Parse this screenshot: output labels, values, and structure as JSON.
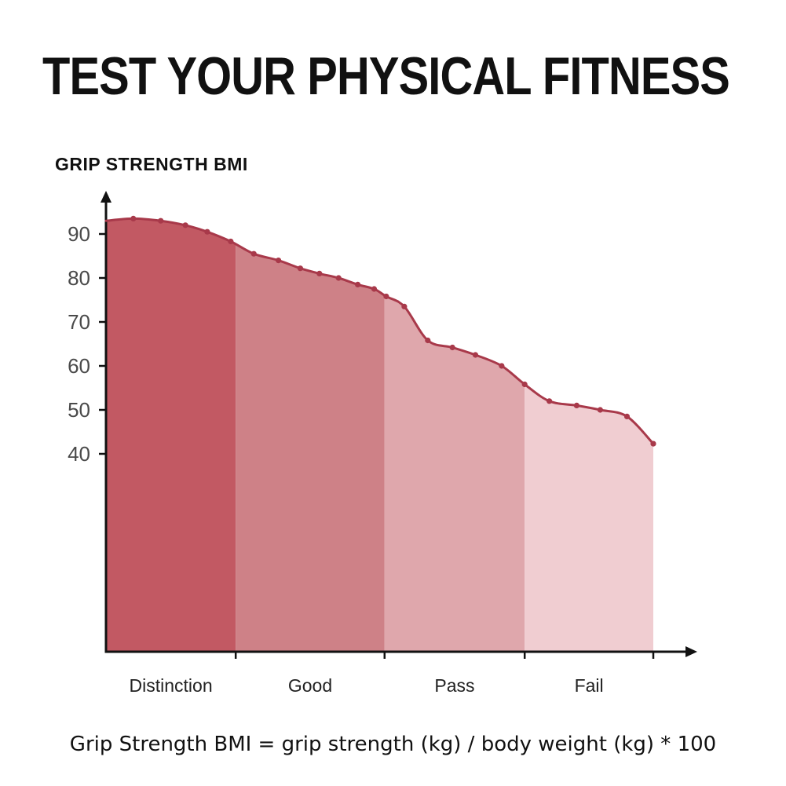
{
  "page": {
    "title": "TEST YOUR PHYSICAL FITNESS",
    "chart_heading": "GRIP STRENGTH BMI",
    "caption": "Grip Strength BMI = grip strength (kg) / body weight (kg) * 100"
  },
  "chart_data": {
    "type": "area",
    "title": "GRIP STRENGTH BMI",
    "xlabel": "",
    "ylabel": "",
    "grid": false,
    "legend": false,
    "y_ticks": [
      90,
      80,
      70,
      60,
      50,
      40
    ],
    "y_range_shown": [
      40,
      95
    ],
    "categories": [
      "Distinction",
      "Good",
      "Pass",
      "Fail"
    ],
    "band_boundaries_frac": [
      0,
      0.237,
      0.509,
      0.765,
      1.0
    ],
    "band_colors": [
      "#c25963",
      "#ce8187",
      "#dfa7ac",
      "#f0cdd1"
    ],
    "line_color": "#a8394a",
    "dot_color": "#a8394a",
    "axis_color": "#111111",
    "tick_label_color": "#4a4a4a",
    "category_label_color": "#222222",
    "points": [
      [
        0.0,
        93.0
      ],
      [
        0.05,
        93.5
      ],
      [
        0.1,
        93.0
      ],
      [
        0.145,
        92.0
      ],
      [
        0.185,
        90.5
      ],
      [
        0.228,
        88.3
      ],
      [
        0.27,
        85.5
      ],
      [
        0.315,
        84.0
      ],
      [
        0.355,
        82.2
      ],
      [
        0.39,
        81.0
      ],
      [
        0.425,
        80.0
      ],
      [
        0.46,
        78.5
      ],
      [
        0.49,
        77.5
      ],
      [
        0.512,
        75.8
      ],
      [
        0.545,
        73.5
      ],
      [
        0.588,
        65.8
      ],
      [
        0.633,
        64.2
      ],
      [
        0.675,
        62.5
      ],
      [
        0.723,
        60.0
      ],
      [
        0.765,
        55.8
      ],
      [
        0.81,
        52.0
      ],
      [
        0.86,
        51.0
      ],
      [
        0.903,
        50.0
      ],
      [
        0.952,
        48.5
      ],
      [
        1.0,
        42.3
      ]
    ]
  }
}
